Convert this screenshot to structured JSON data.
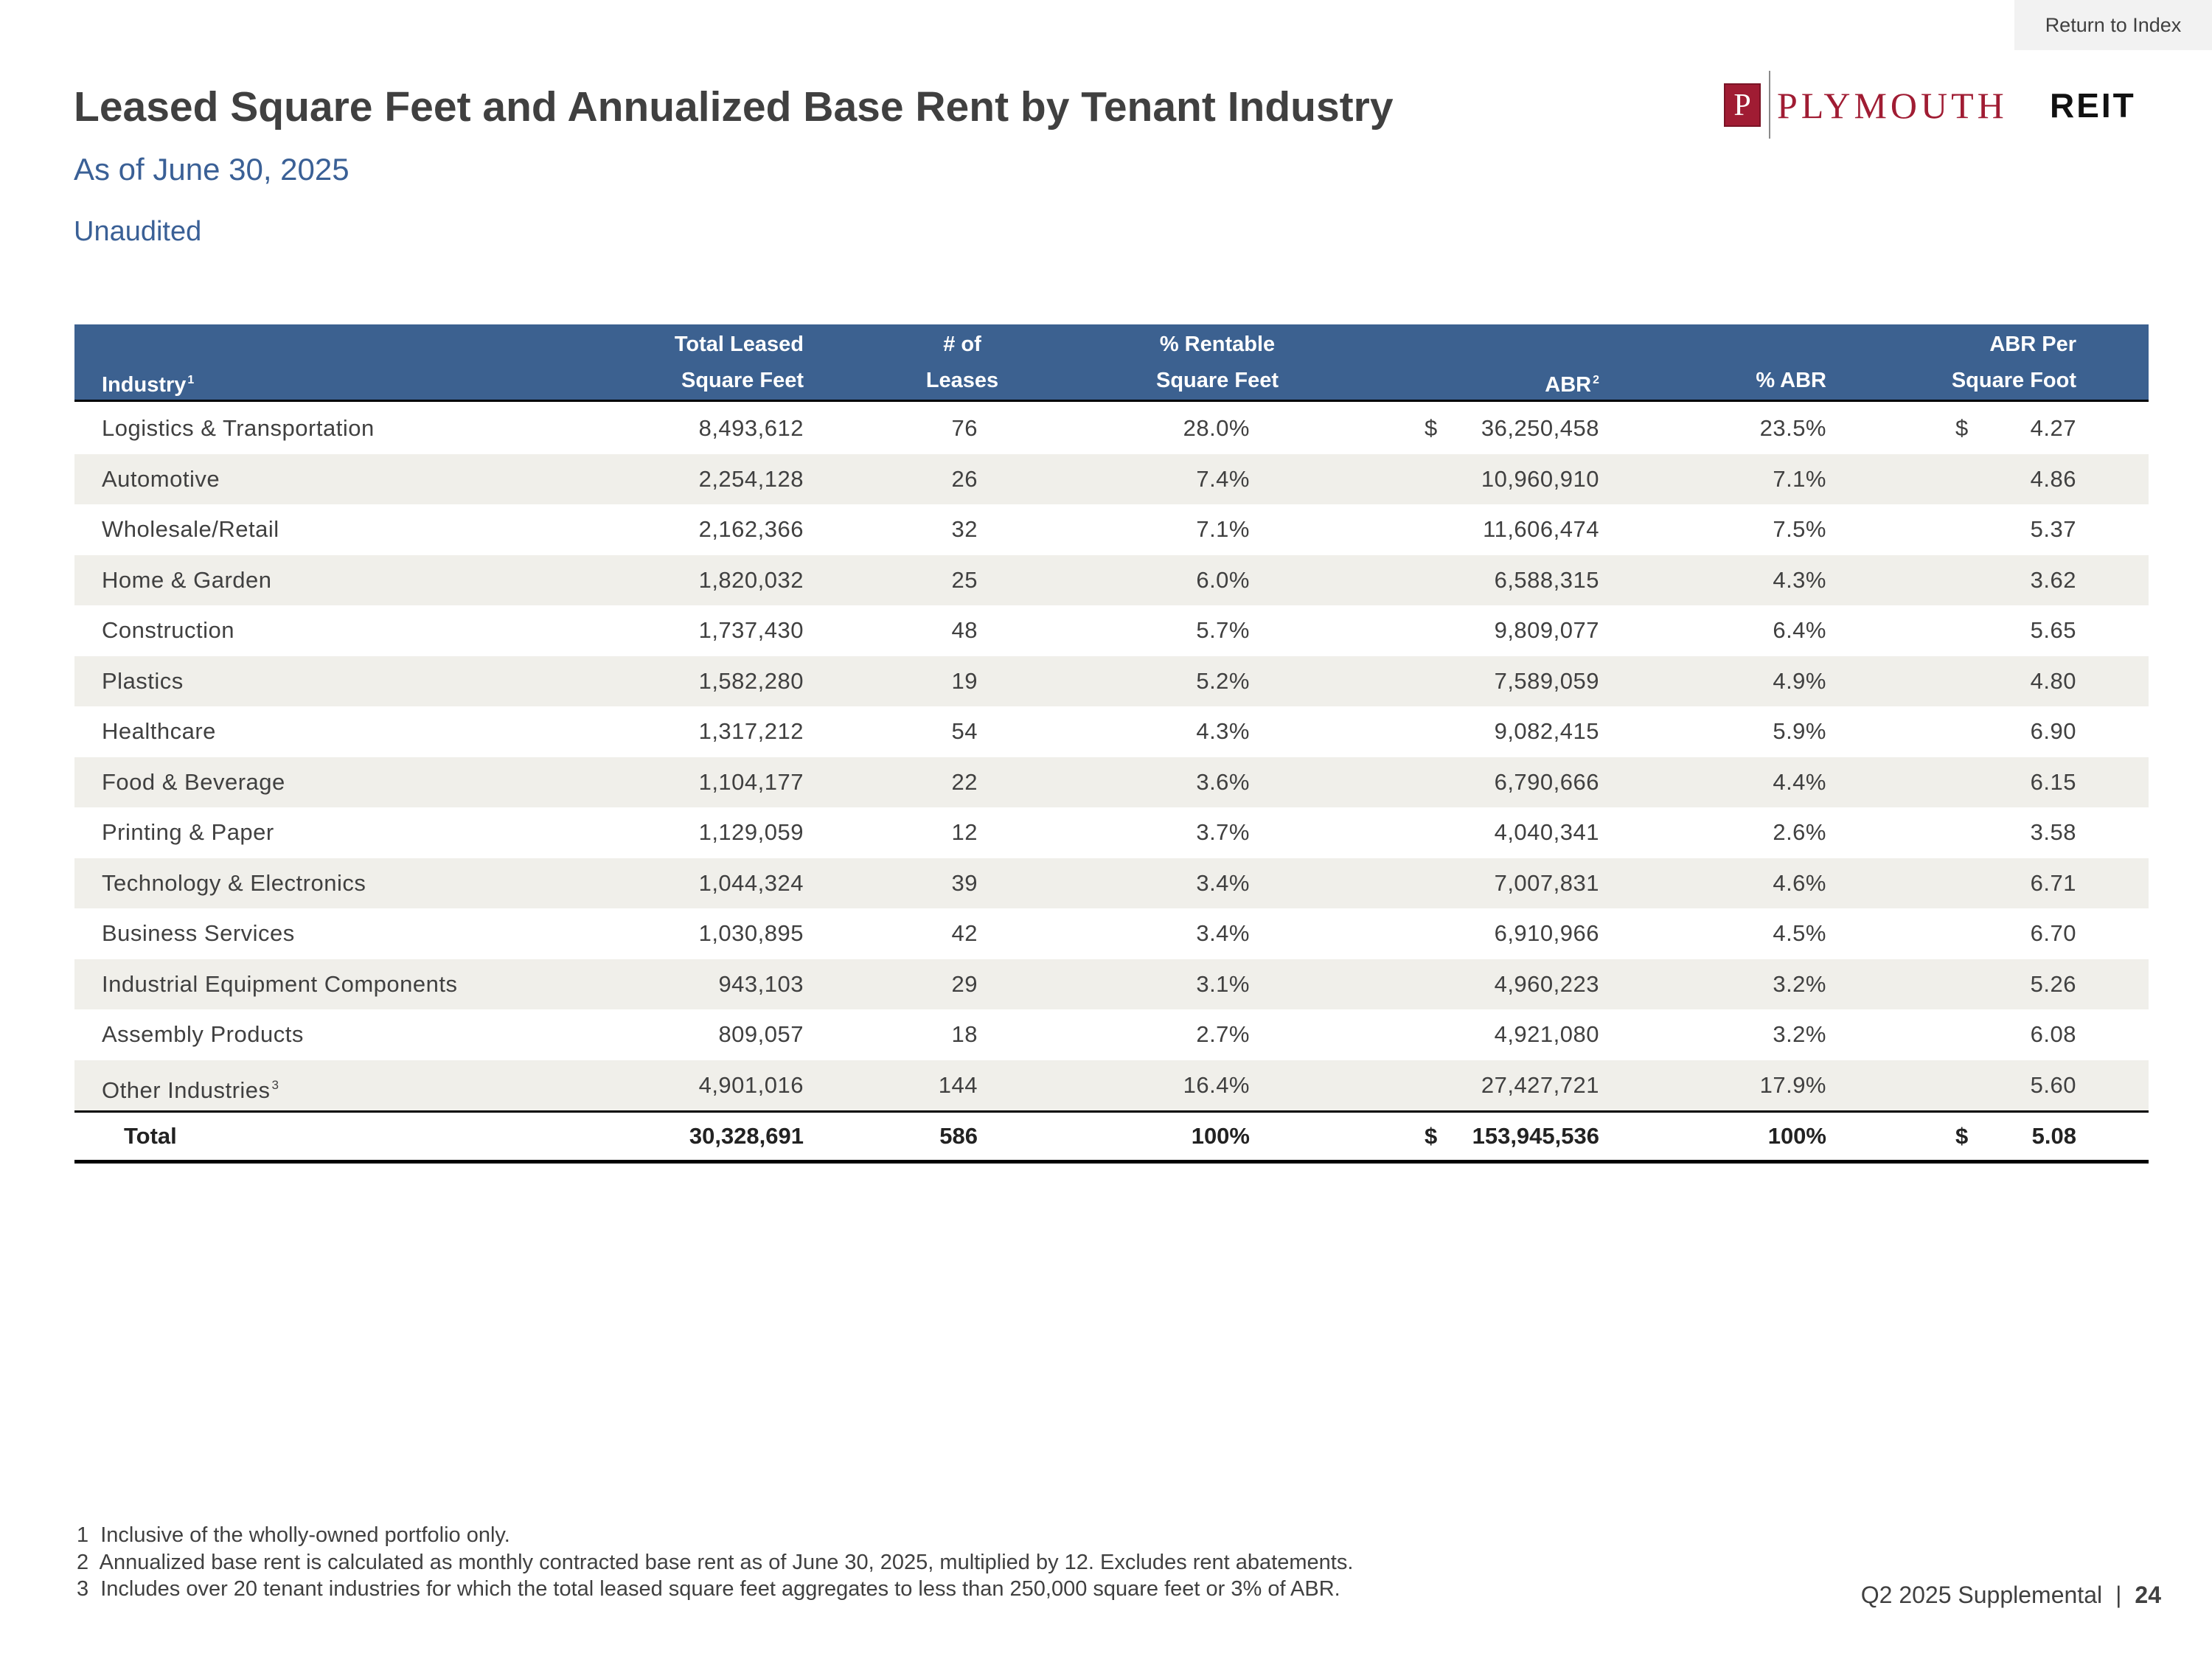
{
  "return_link": "Return to Index",
  "header": {
    "title": "Leased Square Feet and Annualized Base Rent by Tenant Industry",
    "subtitle": "As of June 30, 2025",
    "note": "Unaudited"
  },
  "logo": {
    "letter": "P",
    "name": "PLYMOUTH",
    "suffix": "REIT"
  },
  "table": {
    "columns": [
      {
        "lines": [
          "Industry"
        ],
        "sup": "1"
      },
      {
        "lines": [
          "Total Leased",
          "Square Feet"
        ]
      },
      {
        "lines": [
          "# of",
          "Leases"
        ]
      },
      {
        "lines": [
          "% Rentable",
          "Square Feet"
        ]
      },
      {
        "lines": [
          "ABR"
        ],
        "sup": "2"
      },
      {
        "lines": [
          "% ABR"
        ]
      },
      {
        "lines": [
          "ABR Per",
          "Square Foot"
        ]
      }
    ],
    "rows": [
      {
        "cells": [
          "Logistics & Transportation",
          "8,493,612",
          "76",
          "28.0%",
          "36,250,458",
          "23.5%",
          "4.27"
        ],
        "currency": "$"
      },
      {
        "cells": [
          "Automotive",
          "2,254,128",
          "26",
          "7.4%",
          "10,960,910",
          "7.1%",
          "4.86"
        ]
      },
      {
        "cells": [
          "Wholesale/Retail",
          "2,162,366",
          "32",
          "7.1%",
          "11,606,474",
          "7.5%",
          "5.37"
        ]
      },
      {
        "cells": [
          "Home & Garden",
          "1,820,032",
          "25",
          "6.0%",
          "6,588,315",
          "4.3%",
          "3.62"
        ]
      },
      {
        "cells": [
          "Construction",
          "1,737,430",
          "48",
          "5.7%",
          "9,809,077",
          "6.4%",
          "5.65"
        ]
      },
      {
        "cells": [
          "Plastics",
          "1,582,280",
          "19",
          "5.2%",
          "7,589,059",
          "4.9%",
          "4.80"
        ]
      },
      {
        "cells": [
          "Healthcare",
          "1,317,212",
          "54",
          "4.3%",
          "9,082,415",
          "5.9%",
          "6.90"
        ]
      },
      {
        "cells": [
          "Food & Beverage",
          "1,104,177",
          "22",
          "3.6%",
          "6,790,666",
          "4.4%",
          "6.15"
        ]
      },
      {
        "cells": [
          "Printing & Paper",
          "1,129,059",
          "12",
          "3.7%",
          "4,040,341",
          "2.6%",
          "3.58"
        ]
      },
      {
        "cells": [
          "Technology & Electronics",
          "1,044,324",
          "39",
          "3.4%",
          "7,007,831",
          "4.6%",
          "6.71"
        ]
      },
      {
        "cells": [
          "Business Services",
          "1,030,895",
          "42",
          "3.4%",
          "6,910,966",
          "4.5%",
          "6.70"
        ]
      },
      {
        "cells": [
          "Industrial Equipment Components",
          "943,103",
          "29",
          "3.1%",
          "4,960,223",
          "3.2%",
          "5.26"
        ]
      },
      {
        "cells": [
          "Assembly Products",
          "809,057",
          "18",
          "2.7%",
          "4,921,080",
          "3.2%",
          "6.08"
        ]
      },
      {
        "cells": [
          "Other Industries",
          "4,901,016",
          "144",
          "16.4%",
          "27,427,721",
          "17.9%",
          "5.60"
        ],
        "sup": "3"
      }
    ],
    "total": {
      "cells": [
        "Total",
        "30,328,691",
        "586",
        "100%",
        "153,945,536",
        "100%",
        "5.08"
      ],
      "currency": "$"
    }
  },
  "footnotes": [
    "1  Inclusive of the wholly-owned portfolio only.",
    "2  Annualized base rent is calculated as monthly contracted base rent as of June 30, 2025, multiplied by 12. Excludes rent abatements.",
    "3  Includes over 20 tenant industries for which the total leased square feet aggregates to less than 250,000 square feet or 3% of ABR."
  ],
  "footer": {
    "label": "Q2 2025 Supplemental",
    "separator": "|",
    "page": "24"
  }
}
